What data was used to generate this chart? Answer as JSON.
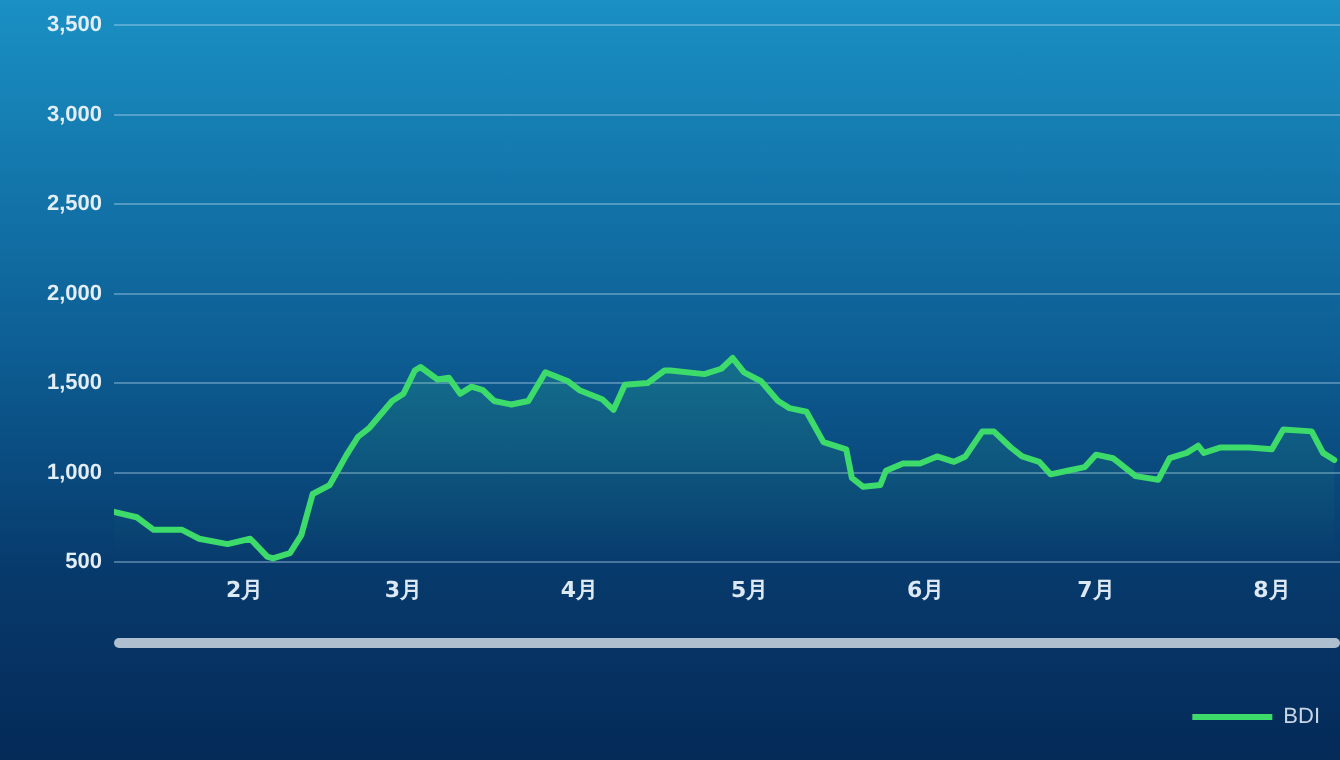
{
  "chart_data": {
    "type": "area",
    "legend": "bottom right",
    "grid": "y",
    "marker": "none",
    "x": [
      "--01-09",
      "--01-13",
      "--01-16",
      "--01-21",
      "--01-24",
      "--01-29",
      "--02-02",
      "--02-05",
      "--02-06",
      "--02-09",
      "--02-11",
      "--02-13",
      "--02-16",
      "--02-19",
      "--02-21",
      "--02-23",
      "--02-27",
      "--03-01",
      "--03-03",
      "--03-04",
      "--03-07",
      "--03-09",
      "--03-11",
      "--03-13",
      "--03-15",
      "--03-17",
      "--03-20",
      "--03-23",
      "--03-26",
      "--03-30",
      "--04-01",
      "--04-05",
      "--04-07",
      "--04-09",
      "--04-13",
      "--04-16",
      "--04-17",
      "--04-23",
      "--04-26",
      "--04-28",
      "--04-30",
      "--05-03",
      "--05-06",
      "--05-08",
      "--05-11",
      "--05-14",
      "--05-18",
      "--05-19",
      "--05-21",
      "--05-24",
      "--05-25",
      "--05-28",
      "--05-31",
      "--06-03",
      "--06-06",
      "--06-08",
      "--06-11",
      "--06-13",
      "--06-16",
      "--06-18",
      "--06-21",
      "--06-23",
      "--06-26",
      "--06-29",
      "--07-01",
      "--07-04",
      "--07-08",
      "--07-12",
      "--07-14",
      "--07-17",
      "--07-19",
      "--07-20",
      "--07-23",
      "--07-28",
      "--08-01",
      "--08-03",
      "--08-08",
      "--08-10",
      "--08-12"
    ],
    "series": [
      {
        "name": "BDI",
        "color": "#3ddc6a",
        "values": [
          780,
          750,
          680,
          680,
          630,
          600,
          630,
          530,
          520,
          550,
          650,
          880,
          930,
          1100,
          1200,
          1250,
          1400,
          1440,
          1570,
          1590,
          1520,
          1530,
          1440,
          1480,
          1460,
          1400,
          1380,
          1400,
          1560,
          1510,
          1460,
          1410,
          1350,
          1490,
          1500,
          1570,
          1570,
          1550,
          1580,
          1640,
          1560,
          1510,
          1400,
          1360,
          1340,
          1170,
          1130,
          970,
          920,
          930,
          1010,
          1050,
          1050,
          1090,
          1060,
          1090,
          1230,
          1230,
          1140,
          1090,
          1060,
          990,
          1010,
          1030,
          1100,
          1080,
          980,
          960,
          1080,
          1110,
          1150,
          1110,
          1140,
          1140,
          1130,
          1240,
          1230,
          1110,
          1070
        ]
      }
    ],
    "xlim": [
      "--01-09",
      "--08-13"
    ],
    "xticks": [
      {
        "value": "--02-01",
        "label": "2月"
      },
      {
        "value": "--03-01",
        "label": "3月"
      },
      {
        "value": "--04-01",
        "label": "4月"
      },
      {
        "value": "--05-01",
        "label": "5月"
      },
      {
        "value": "--06-01",
        "label": "6月"
      },
      {
        "value": "--07-01",
        "label": "7月"
      },
      {
        "value": "--08-01",
        "label": "8月"
      }
    ],
    "ylim": [
      500,
      3500
    ],
    "yticks": [
      {
        "value": 500,
        "label": "500"
      },
      {
        "value": 1000,
        "label": "1,000"
      },
      {
        "value": 1500,
        "label": "1,500"
      },
      {
        "value": 2000,
        "label": "2,000"
      },
      {
        "value": 2500,
        "label": "2,500"
      },
      {
        "value": 3000,
        "label": "3,000"
      },
      {
        "value": 3500,
        "label": "3,500"
      }
    ]
  }
}
